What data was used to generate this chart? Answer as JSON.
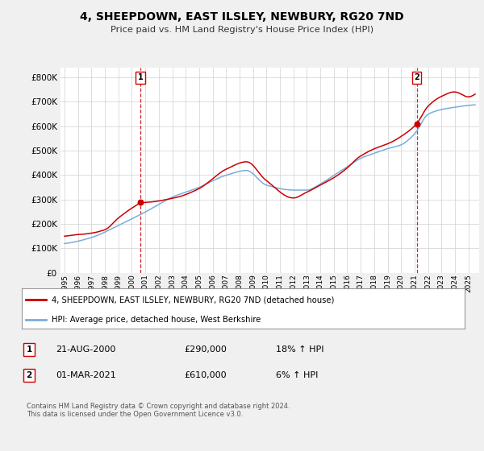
{
  "title": "4, SHEEPDOWN, EAST ILSLEY, NEWBURY, RG20 7ND",
  "subtitle": "Price paid vs. HM Land Registry's House Price Index (HPI)",
  "ytick_values": [
    0,
    100000,
    200000,
    300000,
    400000,
    500000,
    600000,
    700000,
    800000
  ],
  "ylim": [
    0,
    840000
  ],
  "xlim_start": 1994.7,
  "xlim_end": 2025.8,
  "sale1": {
    "date_num": 2000.64,
    "price": 290000,
    "label": "1",
    "hpi_pct": "18%",
    "date_str": "21-AUG-2000"
  },
  "sale2": {
    "date_num": 2021.16,
    "price": 610000,
    "label": "2",
    "hpi_pct": "6%",
    "date_str": "01-MAR-2021"
  },
  "legend_line1": "4, SHEEPDOWN, EAST ILSLEY, NEWBURY, RG20 7ND (detached house)",
  "legend_line2": "HPI: Average price, detached house, West Berkshire",
  "footer": "Contains HM Land Registry data © Crown copyright and database right 2024.\nThis data is licensed under the Open Government Licence v3.0.",
  "color_red": "#cc0000",
  "color_blue": "#7aaddb",
  "background_color": "#f0f0f0",
  "plot_background": "#ffffff",
  "xticks": [
    1995,
    1996,
    1997,
    1998,
    1999,
    2000,
    2001,
    2002,
    2003,
    2004,
    2005,
    2006,
    2007,
    2008,
    2009,
    2010,
    2011,
    2012,
    2013,
    2014,
    2015,
    2016,
    2017,
    2018,
    2019,
    2020,
    2021,
    2022,
    2023,
    2024,
    2025
  ]
}
